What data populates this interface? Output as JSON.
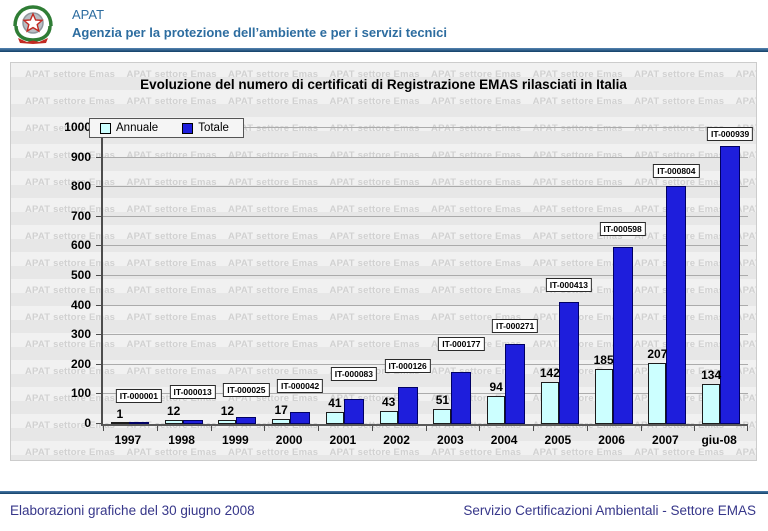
{
  "header": {
    "app_name": "APAT",
    "subtitle": "Agenzia per la protezione dell’ambiente e per i servizi tecnici"
  },
  "watermark": {
    "text": "APAT settore Emas"
  },
  "chart_data": {
    "type": "bar",
    "title": "Evoluzione del numero di certificati di Registrazione EMAS rilasciati in Italia",
    "categories": [
      "1997",
      "1998",
      "1999",
      "2000",
      "2001",
      "2002",
      "2003",
      "2004",
      "2005",
      "2006",
      "2007",
      "giu-08"
    ],
    "series": [
      {
        "name": "Annuale",
        "color": "#ccffff",
        "values": [
          1,
          12,
          12,
          17,
          41,
          43,
          51,
          94,
          142,
          185,
          207,
          134
        ]
      },
      {
        "name": "Totale",
        "color": "#1e1edc",
        "values": [
          1,
          13,
          25,
          42,
          83,
          126,
          177,
          271,
          413,
          598,
          804,
          939
        ]
      }
    ],
    "total_labels": [
      "IT-000001",
      "IT-000013",
      "IT-000025",
      "IT-000042",
      "IT-000083",
      "IT-000126",
      "IT-000177",
      "IT-000271",
      "IT-000413",
      "IT-000598",
      "IT-000804",
      "IT-000939"
    ],
    "ylim": [
      0,
      1000
    ],
    "ytick_step": 100,
    "grid": "horizontal",
    "legend_position": "top-left"
  },
  "footer": {
    "left": "Elaborazioni grafiche del 30 giugno 2008",
    "right": "Servizio Certificazioni Ambientali - Settore EMAS"
  },
  "colors": {
    "brand_blue": "#2d6da0",
    "footer_text": "#37378a",
    "annuale_fill": "#ccffff",
    "totale_fill": "#1e1edc"
  }
}
